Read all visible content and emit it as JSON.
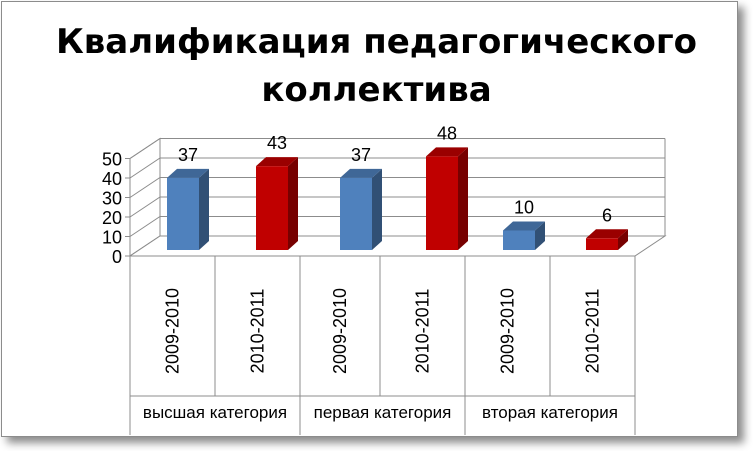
{
  "chart_data": {
    "type": "bar",
    "title_lines": [
      "Квалификация педагогического",
      "коллектива"
    ],
    "groups": [
      "высшая категория",
      "первая категория",
      "вторая категория"
    ],
    "years": [
      "2009-2010",
      "2010-2011"
    ],
    "bars": [
      {
        "group": "высшая категория",
        "year": "2009-2010",
        "value": 37
      },
      {
        "group": "высшая категория",
        "year": "2010-2011",
        "value": 43
      },
      {
        "group": "первая категория",
        "year": "2009-2010",
        "value": 37
      },
      {
        "group": "первая категория",
        "year": "2010-2011",
        "value": 48
      },
      {
        "group": "вторая категория",
        "year": "2009-2010",
        "value": 10
      },
      {
        "group": "вторая категория",
        "year": "2010-2011",
        "value": 6
      }
    ],
    "yticks": [
      0,
      10,
      20,
      30,
      40,
      50
    ],
    "ylim": [
      0,
      50
    ],
    "grid": true,
    "legend": "none",
    "colors": {
      "2009-2010": "#4f81bd",
      "2010-2011": "#c00000"
    }
  }
}
